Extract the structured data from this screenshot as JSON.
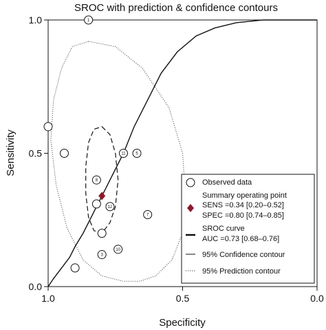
{
  "chart_data": {
    "type": "scatter",
    "title": "SROC with prediction & confidence contours",
    "xlabel": "Specificity",
    "ylabel": "Sensitivity",
    "xlim": [
      1.0,
      0.0
    ],
    "ylim": [
      0.0,
      1.0
    ],
    "x_reversed": true,
    "x_ticks": [
      {
        "v": 1.0,
        "label": "1.0"
      },
      {
        "v": 0.5,
        "label": "0.5"
      },
      {
        "v": 0.0,
        "label": "0.0"
      }
    ],
    "y_ticks": [
      {
        "v": 0.0,
        "label": "0.0"
      },
      {
        "v": 0.5,
        "label": "0.5"
      },
      {
        "v": 1.0,
        "label": "1.0"
      }
    ],
    "observed_data": [
      {
        "study": "1",
        "specificity": 0.85,
        "sensitivity": 1.0
      },
      {
        "study": "",
        "specificity": 1.0,
        "sensitivity": 0.6
      },
      {
        "study": "",
        "specificity": 0.94,
        "sensitivity": 0.5
      },
      {
        "study": "11",
        "specificity": 0.72,
        "sensitivity": 0.5
      },
      {
        "study": "5",
        "specificity": 0.67,
        "sensitivity": 0.5
      },
      {
        "study": "8",
        "specificity": 0.82,
        "sensitivity": 0.4
      },
      {
        "study": "",
        "specificity": 0.82,
        "sensitivity": 0.31
      },
      {
        "study": "12",
        "specificity": 0.77,
        "sensitivity": 0.3
      },
      {
        "study": "7",
        "specificity": 0.63,
        "sensitivity": 0.27
      },
      {
        "study": "",
        "specificity": 0.8,
        "sensitivity": 0.2
      },
      {
        "study": "10",
        "specificity": 0.74,
        "sensitivity": 0.14
      },
      {
        "study": "3",
        "specificity": 0.8,
        "sensitivity": 0.12
      },
      {
        "study": "",
        "specificity": 0.9,
        "sensitivity": 0.07
      }
    ],
    "summary_point": {
      "specificity": 0.8,
      "sensitivity": 0.34,
      "color": "#8b1a2b"
    },
    "sroc_curve": {
      "specificity": [
        1.0,
        0.98,
        0.95,
        0.92,
        0.9,
        0.87,
        0.85,
        0.83,
        0.8,
        0.76,
        0.72,
        0.68,
        0.63,
        0.58,
        0.52,
        0.45,
        0.38,
        0.3,
        0.2,
        0.1,
        0.0
      ],
      "sensitivity": [
        0.0,
        0.03,
        0.07,
        0.11,
        0.15,
        0.2,
        0.24,
        0.28,
        0.34,
        0.42,
        0.5,
        0.6,
        0.7,
        0.8,
        0.88,
        0.94,
        0.97,
        0.99,
        1.0,
        1.0,
        1.0
      ]
    },
    "confidence_contour": {
      "specificity": [
        0.8,
        0.77,
        0.75,
        0.74,
        0.75,
        0.77,
        0.8,
        0.83,
        0.85,
        0.86,
        0.86,
        0.85,
        0.83,
        0.8
      ],
      "sensitivity": [
        0.6,
        0.57,
        0.5,
        0.4,
        0.3,
        0.24,
        0.2,
        0.21,
        0.26,
        0.35,
        0.45,
        0.54,
        0.59,
        0.6
      ]
    },
    "prediction_contour": {
      "specificity": [
        0.85,
        0.75,
        0.65,
        0.55,
        0.5,
        0.49,
        0.5,
        0.54,
        0.6,
        0.66,
        0.72,
        0.8,
        0.87,
        0.93,
        0.97,
        0.99,
        0.98,
        0.95,
        0.91,
        0.85
      ],
      "sensitivity": [
        0.92,
        0.9,
        0.82,
        0.67,
        0.5,
        0.35,
        0.2,
        0.1,
        0.04,
        0.02,
        0.02,
        0.04,
        0.1,
        0.22,
        0.38,
        0.55,
        0.7,
        0.82,
        0.9,
        0.92
      ]
    },
    "legend": {
      "placement": "bottom-right",
      "lines": [
        "Observed data",
        "Summary operating point",
        "SENS =0.34 [0.20–0.52]",
        "SPEC =0.80 [0.74–0.85]",
        "SROC curve",
        "AUC =0.73 [0.68–0.76]",
        "95% Confidence contour",
        "95% Prediction contour"
      ]
    },
    "grid": false
  }
}
